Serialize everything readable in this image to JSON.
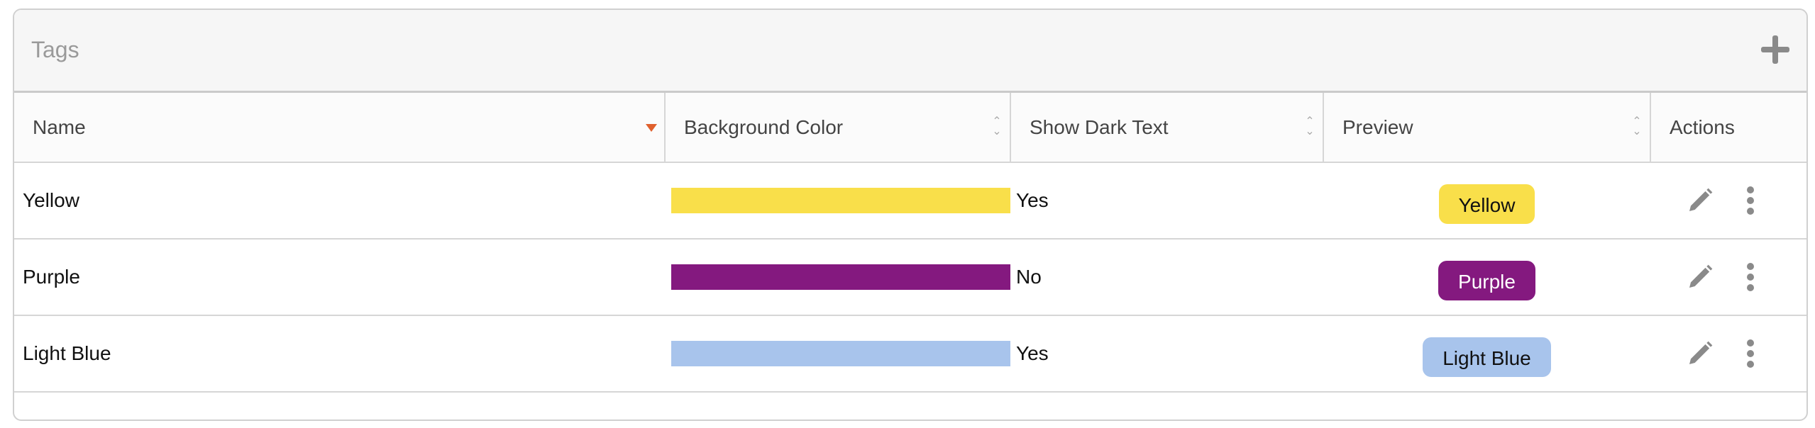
{
  "panel": {
    "title": "Tags",
    "add_icon": "plus-icon"
  },
  "columns": [
    {
      "label": "Name",
      "sort": "descending",
      "sort_color": "#e0602d"
    },
    {
      "label": "Background Color",
      "sort": "none"
    },
    {
      "label": "Show Dark Text",
      "sort": "none"
    },
    {
      "label": "Preview",
      "sort": "none"
    },
    {
      "label": "Actions"
    }
  ],
  "rows": [
    {
      "name": "Yellow",
      "color": "#f9df4a",
      "dark_text": "Yes",
      "preview": "Yellow",
      "preview_text_color": "#111111"
    },
    {
      "name": "Purple",
      "color": "#84197f",
      "dark_text": "No",
      "preview": "Purple",
      "preview_text_color": "#ffffff"
    },
    {
      "name": "Light Blue",
      "color": "#a8c4ec",
      "dark_text": "Yes",
      "preview": "Light Blue",
      "preview_text_color": "#111111"
    }
  ],
  "row_actions": [
    "pencil-icon",
    "more-vertical-icon"
  ]
}
